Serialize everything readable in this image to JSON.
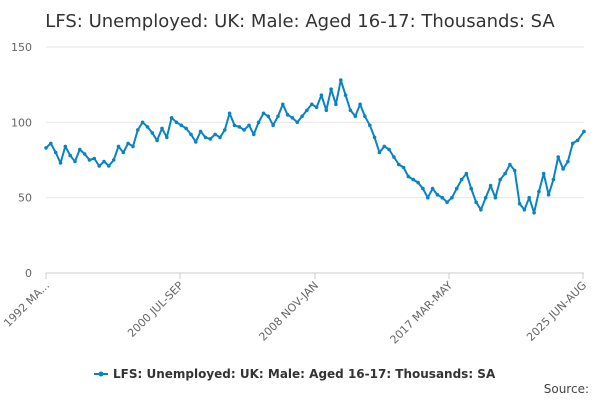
{
  "chart_data": {
    "type": "line",
    "title": "LFS: Unemployed: UK: Male: Aged 16-17: Thousands: SA",
    "xlabel": "",
    "ylabel": "",
    "x_tick_labels": [
      "1992 MA...",
      "2000 JUL-SEP",
      "2008 NOV-JAN",
      "2017 MAR-MAY",
      "2025 JUN-AUG"
    ],
    "ylim": [
      0,
      150
    ],
    "y_ticks": [
      0,
      50,
      100,
      150
    ],
    "grid": "horizontal",
    "legend_position": "bottom",
    "series": [
      {
        "name": "LFS: Unemployed: UK: Male: Aged 16-17: Thousands: SA",
        "color": "#0a83c4",
        "points": [
          [
            "1992",
            83
          ],
          [
            "1992.3",
            86
          ],
          [
            "1992.6",
            80
          ],
          [
            "1992.9",
            73
          ],
          [
            "1993.2",
            84
          ],
          [
            "1993.5",
            78
          ],
          [
            "1993.8",
            74
          ],
          [
            "1994.1",
            82
          ],
          [
            "1994.4",
            79
          ],
          [
            "1994.7",
            75
          ],
          [
            "1995.0",
            76
          ],
          [
            "1995.3",
            71
          ],
          [
            "1995.6",
            74
          ],
          [
            "1995.9",
            71
          ],
          [
            "1996.2",
            75
          ],
          [
            "1996.5",
            84
          ],
          [
            "1996.8",
            80
          ],
          [
            "1997.1",
            86
          ],
          [
            "1997.4",
            84
          ],
          [
            "1997.7",
            95
          ],
          [
            "1998.0",
            100
          ],
          [
            "1998.3",
            97
          ],
          [
            "1998.6",
            93
          ],
          [
            "1998.9",
            88
          ],
          [
            "1999.2",
            96
          ],
          [
            "1999.5",
            90
          ],
          [
            "1999.8",
            103
          ],
          [
            "2000.1",
            100
          ],
          [
            "2000.4",
            98
          ],
          [
            "2000.7",
            96
          ],
          [
            "2001.0",
            92
          ],
          [
            "2001.3",
            87
          ],
          [
            "2001.6",
            94
          ],
          [
            "2001.9",
            90
          ],
          [
            "2002.2",
            89
          ],
          [
            "2002.5",
            92
          ],
          [
            "2002.8",
            90
          ],
          [
            "2003.1",
            95
          ],
          [
            "2003.4",
            106
          ],
          [
            "2003.7",
            98
          ],
          [
            "2004.0",
            97
          ],
          [
            "2004.3",
            95
          ],
          [
            "2004.6",
            98
          ],
          [
            "2004.9",
            92
          ],
          [
            "2005.2",
            100
          ],
          [
            "2005.5",
            106
          ],
          [
            "2005.8",
            104
          ],
          [
            "2006.1",
            98
          ],
          [
            "2006.4",
            104
          ],
          [
            "2006.7",
            112
          ],
          [
            "2007.0",
            105
          ],
          [
            "2007.3",
            103
          ],
          [
            "2007.6",
            100
          ],
          [
            "2007.9",
            104
          ],
          [
            "2008.2",
            108
          ],
          [
            "2008.5",
            112
          ],
          [
            "2008.8",
            110
          ],
          [
            "2009.1",
            118
          ],
          [
            "2009.4",
            108
          ],
          [
            "2009.7",
            122
          ],
          [
            "2010.0",
            112
          ],
          [
            "2010.3",
            128
          ],
          [
            "2010.6",
            118
          ],
          [
            "2010.9",
            108
          ],
          [
            "2011.2",
            104
          ],
          [
            "2011.5",
            112
          ],
          [
            "2011.8",
            104
          ],
          [
            "2012.1",
            98
          ],
          [
            "2012.4",
            90
          ],
          [
            "2012.7",
            80
          ],
          [
            "2013.0",
            84
          ],
          [
            "2013.3",
            82
          ],
          [
            "2013.6",
            77
          ],
          [
            "2013.9",
            72
          ],
          [
            "2014.2",
            70
          ],
          [
            "2014.5",
            64
          ],
          [
            "2014.8",
            62
          ],
          [
            "2015.1",
            60
          ],
          [
            "2015.4",
            56
          ],
          [
            "2015.7",
            50
          ],
          [
            "2016.0",
            56
          ],
          [
            "2016.3",
            52
          ],
          [
            "2016.6",
            50
          ],
          [
            "2016.9",
            47
          ],
          [
            "2017.2",
            50
          ],
          [
            "2017.5",
            56
          ],
          [
            "2017.8",
            62
          ],
          [
            "2018.1",
            66
          ],
          [
            "2018.4",
            56
          ],
          [
            "2018.7",
            47
          ],
          [
            "2019.0",
            42
          ],
          [
            "2019.3",
            50
          ],
          [
            "2019.6",
            58
          ],
          [
            "2019.9",
            50
          ],
          [
            "2020.2",
            62
          ],
          [
            "2020.5",
            66
          ],
          [
            "2020.8",
            72
          ],
          [
            "2021.1",
            68
          ],
          [
            "2021.4",
            46
          ],
          [
            "2021.7",
            42
          ],
          [
            "2022.0",
            50
          ],
          [
            "2022.3",
            40
          ],
          [
            "2022.6",
            54
          ],
          [
            "2022.9",
            66
          ],
          [
            "2023.2",
            52
          ],
          [
            "2023.5",
            62
          ],
          [
            "2023.8",
            77
          ],
          [
            "2024.1",
            69
          ],
          [
            "2024.4",
            74
          ],
          [
            "2024.7",
            86
          ],
          [
            "2025.0",
            88
          ],
          [
            "2025.4",
            94
          ]
        ]
      }
    ]
  },
  "legend": {
    "label": "LFS: Unemployed: UK: Male: Aged 16-17: Thousands: SA"
  },
  "source": {
    "label": "Source:"
  }
}
